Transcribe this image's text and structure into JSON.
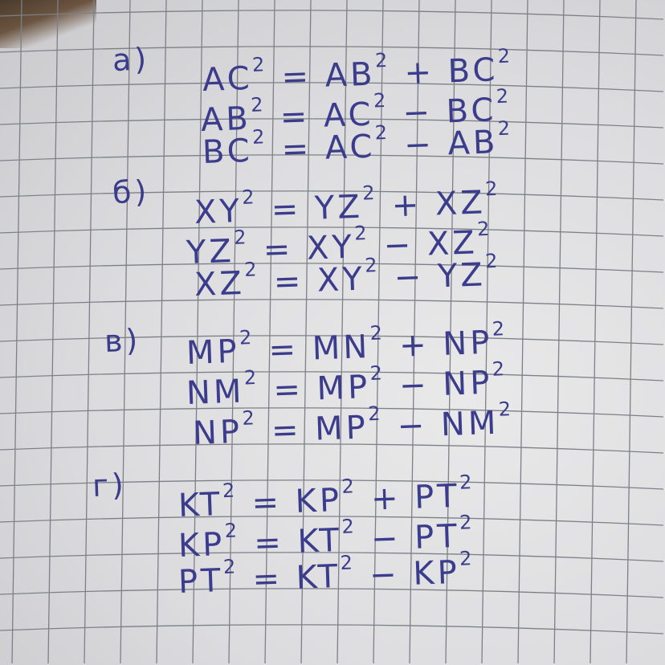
{
  "ink_color": "#3b3c8c",
  "sections": [
    {
      "label": "а)",
      "lines": [
        {
          "lhs": "AC",
          "rest": "= AB",
          "mid": "+ BC"
        },
        {
          "lhs": "AB",
          "rest": "= AC",
          "mid": "− BC"
        },
        {
          "lhs": "BC",
          "rest": "= AC",
          "mid": "− AB"
        }
      ]
    },
    {
      "label": "б)",
      "lines": [
        {
          "lhs": "XY",
          "rest": "= YZ",
          "mid": "+ XZ"
        },
        {
          "lhs": "YZ",
          "rest": "= XY",
          "mid": "− XZ"
        },
        {
          "lhs": "XZ",
          "rest": "= XY",
          "mid": "− YZ"
        }
      ]
    },
    {
      "label": "в)",
      "lines": [
        {
          "lhs": "MP",
          "rest": "= MN",
          "mid": "+ NP"
        },
        {
          "lhs": "NM",
          "rest": "= MP",
          "mid": "− NP"
        },
        {
          "lhs": "NP",
          "rest": "= MP",
          "mid": "− NM"
        }
      ]
    },
    {
      "label": "г)",
      "lines": [
        {
          "lhs": "KT",
          "rest": "= KP",
          "mid": "+ PT"
        },
        {
          "lhs": "KP",
          "rest": "= KT",
          "mid": "− PT"
        },
        {
          "lhs": "PT",
          "rest": "= KT",
          "mid": "− KP"
        }
      ]
    }
  ],
  "exponent": "2"
}
